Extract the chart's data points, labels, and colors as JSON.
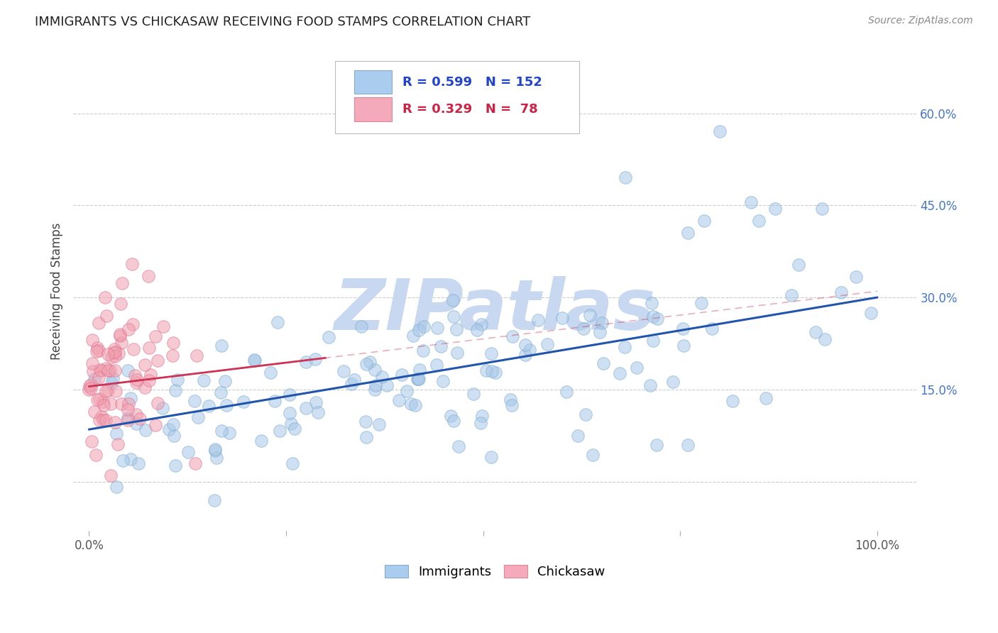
{
  "title": "IMMIGRANTS VS CHICKASAW RECEIVING FOOD STAMPS CORRELATION CHART",
  "source": "Source: ZipAtlas.com",
  "ylabel": "Receiving Food Stamps",
  "xlim": [
    -0.02,
    1.05
  ],
  "ylim": [
    -0.08,
    0.7
  ],
  "blue_R": 0.599,
  "blue_N": 152,
  "pink_R": 0.329,
  "pink_N": 78,
  "blue_color": "#A8C8E8",
  "pink_color": "#F0A0B0",
  "blue_edge_color": "#7BAAD0",
  "pink_edge_color": "#E07090",
  "blue_line_color": "#2255AA",
  "pink_line_color": "#CC3355",
  "watermark": "ZIPatlas",
  "watermark_color": "#C8D8F0",
  "background_color": "#FFFFFF",
  "grid_color": "#CCCCCC",
  "legend_label_immigrants": "Immigrants",
  "legend_label_chickasaw": "Chickasaw",
  "legend_blue_face": "#AACCEE",
  "legend_blue_edge": "#88AACC",
  "legend_pink_face": "#F5AABB",
  "legend_pink_edge": "#DD8899",
  "ytick_color": "#4477CC",
  "xtick_color": "#555555",
  "title_color": "#222222",
  "source_color": "#888888",
  "ylabel_color": "#444444",
  "legend_text_blue": "#2244CC",
  "legend_text_pink": "#CC2244",
  "blue_intercept": 0.085,
  "blue_slope": 0.215,
  "pink_intercept": 0.155,
  "pink_slope": 0.155
}
